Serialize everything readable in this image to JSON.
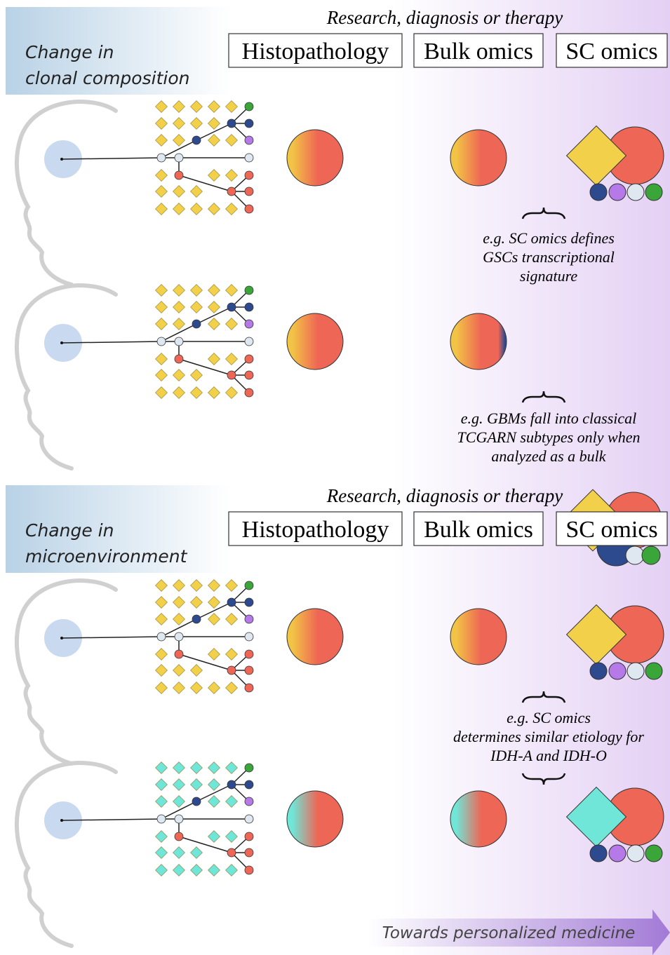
{
  "footer": "Towards personalized medicine",
  "sections": [
    {
      "label": [
        "Change in",
        "clonal composition"
      ],
      "header": "Research, diagnosis or therapy",
      "columns": [
        "Histopathology",
        "Bulk omics",
        "SC omics"
      ],
      "notes": [
        [
          "e.g. SC omics defines",
          "GSCs transcriptional",
          "signature"
        ],
        [
          "e.g. GBMs fall into classical",
          "TCGARN subtypes only when",
          "analyzed as a bulk"
        ]
      ]
    },
    {
      "label": [
        "Change in",
        "microenvironment"
      ],
      "header": "Research, diagnosis or therapy",
      "columns": [
        "Histopathology",
        "Bulk omics",
        "SC omics"
      ],
      "notes": [
        [
          "e.g. SC omics",
          "determines similar etiology for",
          "IDH-A and IDH-O"
        ]
      ]
    }
  ]
}
